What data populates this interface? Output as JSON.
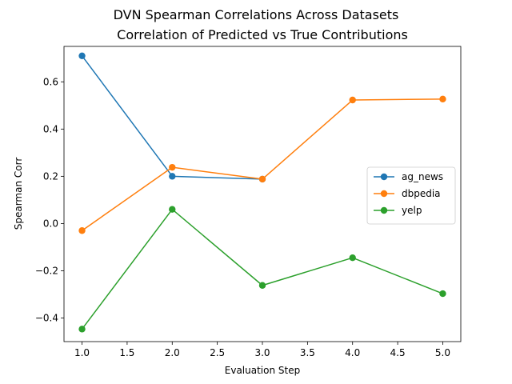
{
  "chart_data": {
    "type": "line",
    "title": "DVN Spearman Correlations Across Datasets",
    "subtitle": "Correlation of Predicted vs True Contributions",
    "xlabel": "Evaluation Step",
    "ylabel": "Spearman Corr",
    "x": [
      1.0,
      2.0,
      3.0,
      4.0,
      5.0
    ],
    "xlim": [
      0.8,
      5.2
    ],
    "ylim": [
      -0.5,
      0.75
    ],
    "xticks": [
      1.0,
      1.5,
      2.0,
      2.5,
      3.0,
      3.5,
      4.0,
      4.5,
      5.0
    ],
    "yticks": [
      -0.4,
      -0.2,
      0.0,
      0.2,
      0.4,
      0.6
    ],
    "xtick_labels": [
      "1.0",
      "1.5",
      "2.0",
      "2.5",
      "3.0",
      "3.5",
      "4.0",
      "4.5",
      "5.0"
    ],
    "ytick_labels": [
      "−0.4",
      "−0.2",
      "0.0",
      "0.2",
      "0.4",
      "0.6"
    ],
    "grid": false,
    "legend_position": "center-right",
    "series": [
      {
        "name": "ag_news",
        "color": "#1f77b4",
        "x": [
          1.0,
          2.0,
          3.0
        ],
        "values": [
          0.71,
          0.2,
          0.188
        ]
      },
      {
        "name": "dbpedia",
        "color": "#ff7f0e",
        "x": [
          1.0,
          2.0,
          3.0,
          4.0,
          5.0
        ],
        "values": [
          -0.03,
          0.238,
          0.188,
          0.523,
          0.527
        ]
      },
      {
        "name": "yelp",
        "color": "#2ca02c",
        "x": [
          1.0,
          2.0,
          3.0,
          4.0,
          5.0
        ],
        "values": [
          -0.447,
          0.06,
          -0.262,
          -0.145,
          -0.297
        ]
      }
    ]
  }
}
